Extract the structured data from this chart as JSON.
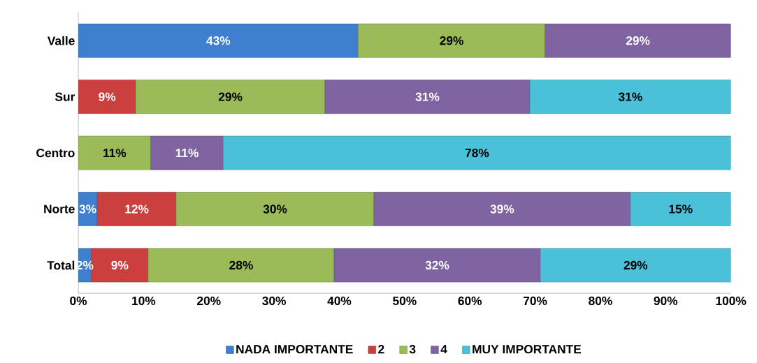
{
  "chart_data": {
    "type": "bar",
    "orientation": "horizontal",
    "stacked": true,
    "categories": [
      "Valle",
      "Sur",
      "Centro",
      "Norte",
      "Total"
    ],
    "series": [
      {
        "name": "NADA IMPORTANTE",
        "color": "#3f7fcf",
        "values": [
          42.9,
          null,
          null,
          2.9,
          2
        ],
        "value_labels": [
          "43%",
          null,
          null,
          "3%",
          "2%"
        ]
      },
      {
        "name": "2",
        "color": "#cc3f3f",
        "values": [
          null,
          8.8,
          null,
          12.1,
          8.7
        ],
        "value_labels": [
          null,
          "9%",
          null,
          "12%",
          "9%"
        ]
      },
      {
        "name": "3",
        "color": "#9bbb59",
        "values": [
          28.6,
          29,
          11.1,
          30.3,
          28.5
        ],
        "value_labels": [
          "29%",
          "29%",
          "11%",
          "30%",
          "28%"
        ]
      },
      {
        "name": "4",
        "color": "#8064a2",
        "values": [
          28.5,
          31.4,
          11.1,
          39.3,
          31.6
        ],
        "value_labels": [
          "29%",
          "31%",
          "11%",
          "39%",
          "32%"
        ]
      },
      {
        "name": "MUY IMPORTANTE",
        "color": "#4bc0d9",
        "values": [
          null,
          30.8,
          77.8,
          15.4,
          29.2
        ],
        "value_labels": [
          null,
          "31%",
          "78%",
          "15%",
          "29%"
        ]
      }
    ],
    "xlim": [
      0,
      100
    ],
    "xticks": [
      {
        "value": 0,
        "label": "0%"
      },
      {
        "value": 10,
        "label": "10%"
      },
      {
        "value": 20,
        "label": "20%"
      },
      {
        "value": 30,
        "label": "30%"
      },
      {
        "value": 40,
        "label": "40%"
      },
      {
        "value": 50,
        "label": "50%"
      },
      {
        "value": 60,
        "label": "60%"
      },
      {
        "value": 70,
        "label": "70%"
      },
      {
        "value": 80,
        "label": "80%"
      },
      {
        "value": 90,
        "label": "90%"
      },
      {
        "value": 100,
        "label": "100%"
      }
    ],
    "legend": "bottom",
    "grid": false
  }
}
